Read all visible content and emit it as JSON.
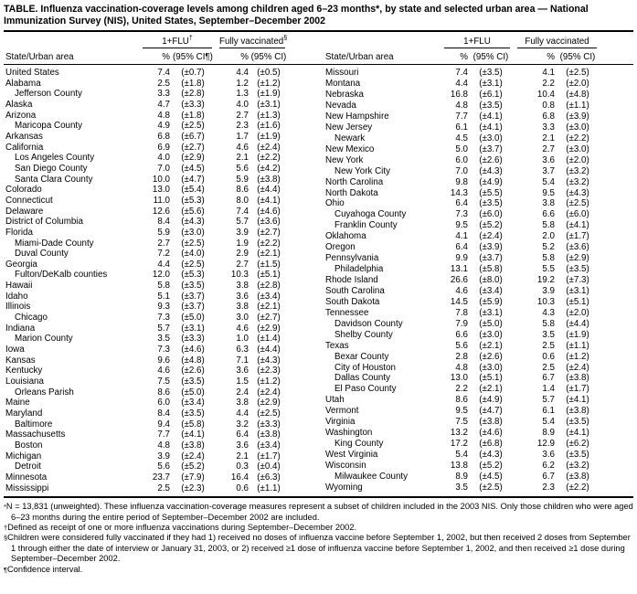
{
  "title": "TABLE. Influenza vaccination-coverage levels among children aged 6–23 months*, by state and selected urban area — National Immunization Survey (NIS), United States, September–December 2002",
  "header": {
    "state_col": "State/Urban area",
    "pct_label": "%",
    "ci_label": "(95% CI)",
    "ci_label_with_note": "(95% CI¶)",
    "left_flu": "1+FLU",
    "left_flu_marker": "†",
    "left_fully": "Fully vaccinated",
    "left_fully_marker": "§",
    "right_flu": "1+FLU",
    "right_fully": "Fully vaccinated"
  },
  "table": {
    "left_rows": [
      {
        "area": "United States",
        "indent": false,
        "flu_pct": "7.4",
        "flu_ci": "(±0.7)",
        "fully_pct": "4.4",
        "fully_ci": "(±0.5)"
      },
      {
        "area": "Alabama",
        "indent": false,
        "flu_pct": "2.5",
        "flu_ci": "(±1.8)",
        "fully_pct": "1.2",
        "fully_ci": "(±1.2)"
      },
      {
        "area": "Jefferson County",
        "indent": true,
        "flu_pct": "3.3",
        "flu_ci": "(±2.8)",
        "fully_pct": "1.3",
        "fully_ci": "(±1.9)"
      },
      {
        "area": "Alaska",
        "indent": false,
        "flu_pct": "4.7",
        "flu_ci": "(±3.3)",
        "fully_pct": "4.0",
        "fully_ci": "(±3.1)"
      },
      {
        "area": "Arizona",
        "indent": false,
        "flu_pct": "4.8",
        "flu_ci": "(±1.8)",
        "fully_pct": "2.7",
        "fully_ci": "(±1.3)"
      },
      {
        "area": "Maricopa County",
        "indent": true,
        "flu_pct": "4.9",
        "flu_ci": "(±2.5)",
        "fully_pct": "2.3",
        "fully_ci": "(±1.6)"
      },
      {
        "area": "Arkansas",
        "indent": false,
        "flu_pct": "6.8",
        "flu_ci": "(±6.7)",
        "fully_pct": "1.7",
        "fully_ci": "(±1.9)"
      },
      {
        "area": "California",
        "indent": false,
        "flu_pct": "6.9",
        "flu_ci": "(±2.7)",
        "fully_pct": "4.6",
        "fully_ci": "(±2.4)"
      },
      {
        "area": "Los Angeles County",
        "indent": true,
        "flu_pct": "4.0",
        "flu_ci": "(±2.9)",
        "fully_pct": "2.1",
        "fully_ci": "(±2.2)"
      },
      {
        "area": "San Diego County",
        "indent": true,
        "flu_pct": "7.0",
        "flu_ci": "(±4.5)",
        "fully_pct": "5.6",
        "fully_ci": "(±4.2)"
      },
      {
        "area": "Santa Clara County",
        "indent": true,
        "flu_pct": "10.0",
        "flu_ci": "(±4.7)",
        "fully_pct": "5.9",
        "fully_ci": "(±3.8)"
      },
      {
        "area": "Colorado",
        "indent": false,
        "flu_pct": "13.0",
        "flu_ci": "(±5.4)",
        "fully_pct": "8.6",
        "fully_ci": "(±4.4)"
      },
      {
        "area": "Connecticut",
        "indent": false,
        "flu_pct": "11.0",
        "flu_ci": "(±5.3)",
        "fully_pct": "8.0",
        "fully_ci": "(±4.1)"
      },
      {
        "area": "Delaware",
        "indent": false,
        "flu_pct": "12.6",
        "flu_ci": "(±5.6)",
        "fully_pct": "7.4",
        "fully_ci": "(±4.6)"
      },
      {
        "area": "District of Columbia",
        "indent": false,
        "flu_pct": "8.4",
        "flu_ci": "(±4.3)",
        "fully_pct": "5.7",
        "fully_ci": "(±3.6)"
      },
      {
        "area": "Florida",
        "indent": false,
        "flu_pct": "5.9",
        "flu_ci": "(±3.0)",
        "fully_pct": "3.9",
        "fully_ci": "(±2.7)"
      },
      {
        "area": "Miami-Dade County",
        "indent": true,
        "flu_pct": "2.7",
        "flu_ci": "(±2.5)",
        "fully_pct": "1.9",
        "fully_ci": "(±2.2)"
      },
      {
        "area": "Duval County",
        "indent": true,
        "flu_pct": "7.2",
        "flu_ci": "(±4.0)",
        "fully_pct": "2.9",
        "fully_ci": "(±2.1)"
      },
      {
        "area": "Georgia",
        "indent": false,
        "flu_pct": "4.4",
        "flu_ci": "(±2.5)",
        "fully_pct": "2.7",
        "fully_ci": "(±1.5)"
      },
      {
        "area": "Fulton/DeKalb counties",
        "indent": true,
        "flu_pct": "12.0",
        "flu_ci": "(±5.3)",
        "fully_pct": "10.3",
        "fully_ci": "(±5.1)"
      },
      {
        "area": "Hawaii",
        "indent": false,
        "flu_pct": "5.8",
        "flu_ci": "(±3.5)",
        "fully_pct": "3.8",
        "fully_ci": "(±2.8)"
      },
      {
        "area": "Idaho",
        "indent": false,
        "flu_pct": "5.1",
        "flu_ci": "(±3.7)",
        "fully_pct": "3.6",
        "fully_ci": "(±3.4)"
      },
      {
        "area": "Illinois",
        "indent": false,
        "flu_pct": "9.3",
        "flu_ci": "(±3.7)",
        "fully_pct": "3.8",
        "fully_ci": "(±2.1)"
      },
      {
        "area": "Chicago",
        "indent": true,
        "flu_pct": "7.3",
        "flu_ci": "(±5.0)",
        "fully_pct": "3.0",
        "fully_ci": "(±2.7)"
      },
      {
        "area": "Indiana",
        "indent": false,
        "flu_pct": "5.7",
        "flu_ci": "(±3.1)",
        "fully_pct": "4.6",
        "fully_ci": "(±2.9)"
      },
      {
        "area": "Marion County",
        "indent": true,
        "flu_pct": "3.5",
        "flu_ci": "(±3.3)",
        "fully_pct": "1.0",
        "fully_ci": "(±1.4)"
      },
      {
        "area": "Iowa",
        "indent": false,
        "flu_pct": "7.3",
        "flu_ci": "(±4.6)",
        "fully_pct": "6.3",
        "fully_ci": "(±4.4)"
      },
      {
        "area": "Kansas",
        "indent": false,
        "flu_pct": "9.6",
        "flu_ci": "(±4.8)",
        "fully_pct": "7.1",
        "fully_ci": "(±4.3)"
      },
      {
        "area": "Kentucky",
        "indent": false,
        "flu_pct": "4.6",
        "flu_ci": "(±2.6)",
        "fully_pct": "3.6",
        "fully_ci": "(±2.3)"
      },
      {
        "area": "Louisiana",
        "indent": false,
        "flu_pct": "7.5",
        "flu_ci": "(±3.5)",
        "fully_pct": "1.5",
        "fully_ci": "(±1.2)"
      },
      {
        "area": "Orleans Parish",
        "indent": true,
        "flu_pct": "8.6",
        "flu_ci": "(±5.0)",
        "fully_pct": "2.4",
        "fully_ci": "(±2.4)"
      },
      {
        "area": "Maine",
        "indent": false,
        "flu_pct": "6.0",
        "flu_ci": "(±3.4)",
        "fully_pct": "3.8",
        "fully_ci": "(±2.9)"
      },
      {
        "area": "Maryland",
        "indent": false,
        "flu_pct": "8.4",
        "flu_ci": "(±3.5)",
        "fully_pct": "4.4",
        "fully_ci": "(±2.5)"
      },
      {
        "area": "Baltimore",
        "indent": true,
        "flu_pct": "9.4",
        "flu_ci": "(±5.8)",
        "fully_pct": "3.2",
        "fully_ci": "(±3.3)"
      },
      {
        "area": "Massachusetts",
        "indent": false,
        "flu_pct": "7.7",
        "flu_ci": "(±4.1)",
        "fully_pct": "6.4",
        "fully_ci": "(±3.8)"
      },
      {
        "area": "Boston",
        "indent": true,
        "flu_pct": "4.8",
        "flu_ci": "(±3.8)",
        "fully_pct": "3.6",
        "fully_ci": "(±3.4)"
      },
      {
        "area": "Michigan",
        "indent": false,
        "flu_pct": "3.9",
        "flu_ci": "(±2.4)",
        "fully_pct": "2.1",
        "fully_ci": "(±1.7)"
      },
      {
        "area": "Detroit",
        "indent": true,
        "flu_pct": "5.6",
        "flu_ci": "(±5.2)",
        "fully_pct": "0.3",
        "fully_ci": "(±0.4)"
      },
      {
        "area": "Minnesota",
        "indent": false,
        "flu_pct": "23.7",
        "flu_ci": "(±7.9)",
        "fully_pct": "16.4",
        "fully_ci": "(±6.3)"
      },
      {
        "area": "Mississippi",
        "indent": false,
        "flu_pct": "2.5",
        "flu_ci": "(±2.3)",
        "fully_pct": "0.6",
        "fully_ci": "(±1.1)"
      }
    ],
    "right_rows": [
      {
        "area": "Missouri",
        "indent": false,
        "flu_pct": "7.4",
        "flu_ci": "(±3.5)",
        "fully_pct": "4.1",
        "fully_ci": "(±2.5)"
      },
      {
        "area": "Montana",
        "indent": false,
        "flu_pct": "4.4",
        "flu_ci": "(±3.1)",
        "fully_pct": "2.2",
        "fully_ci": "(±2.0)"
      },
      {
        "area": "Nebraska",
        "indent": false,
        "flu_pct": "16.8",
        "flu_ci": "(±6.1)",
        "fully_pct": "10.4",
        "fully_ci": "(±4.8)"
      },
      {
        "area": "Nevada",
        "indent": false,
        "flu_pct": "4.8",
        "flu_ci": "(±3.5)",
        "fully_pct": "0.8",
        "fully_ci": "(±1.1)"
      },
      {
        "area": "New Hampshire",
        "indent": false,
        "flu_pct": "7.7",
        "flu_ci": "(±4.1)",
        "fully_pct": "6.8",
        "fully_ci": "(±3.9)"
      },
      {
        "area": "New Jersey",
        "indent": false,
        "flu_pct": "6.1",
        "flu_ci": "(±4.1)",
        "fully_pct": "3.3",
        "fully_ci": "(±3.0)"
      },
      {
        "area": "Newark",
        "indent": true,
        "flu_pct": "4.5",
        "flu_ci": "(±3.0)",
        "fully_pct": "2.1",
        "fully_ci": "(±2.2)"
      },
      {
        "area": "New Mexico",
        "indent": false,
        "flu_pct": "5.0",
        "flu_ci": "(±3.7)",
        "fully_pct": "2.7",
        "fully_ci": "(±3.0)"
      },
      {
        "area": "New York",
        "indent": false,
        "flu_pct": "6.0",
        "flu_ci": "(±2.6)",
        "fully_pct": "3.6",
        "fully_ci": "(±2.0)"
      },
      {
        "area": "New York City",
        "indent": true,
        "flu_pct": "7.0",
        "flu_ci": "(±4.3)",
        "fully_pct": "3.7",
        "fully_ci": "(±3.2)"
      },
      {
        "area": "North Carolina",
        "indent": false,
        "flu_pct": "9.8",
        "flu_ci": "(±4.9)",
        "fully_pct": "5.4",
        "fully_ci": "(±3.2)"
      },
      {
        "area": "North Dakota",
        "indent": false,
        "flu_pct": "14.3",
        "flu_ci": "(±5.5)",
        "fully_pct": "9.5",
        "fully_ci": "(±4.3)"
      },
      {
        "area": "Ohio",
        "indent": false,
        "flu_pct": "6.4",
        "flu_ci": "(±3.5)",
        "fully_pct": "3.8",
        "fully_ci": "(±2.5)"
      },
      {
        "area": "Cuyahoga County",
        "indent": true,
        "flu_pct": "7.3",
        "flu_ci": "(±6.0)",
        "fully_pct": "6.6",
        "fully_ci": "(±6.0)"
      },
      {
        "area": "Franklin County",
        "indent": true,
        "flu_pct": "9.5",
        "flu_ci": "(±5.2)",
        "fully_pct": "5.8",
        "fully_ci": "(±4.1)"
      },
      {
        "area": "Oklahoma",
        "indent": false,
        "flu_pct": "4.1",
        "flu_ci": "(±2.4)",
        "fully_pct": "2.0",
        "fully_ci": "(±1.7)"
      },
      {
        "area": "Oregon",
        "indent": false,
        "flu_pct": "6.4",
        "flu_ci": "(±3.9)",
        "fully_pct": "5.2",
        "fully_ci": "(±3.6)"
      },
      {
        "area": "Pennsylvania",
        "indent": false,
        "flu_pct": "9.9",
        "flu_ci": "(±3.7)",
        "fully_pct": "5.8",
        "fully_ci": "(±2.9)"
      },
      {
        "area": "Philadelphia",
        "indent": true,
        "flu_pct": "13.1",
        "flu_ci": "(±5.8)",
        "fully_pct": "5.5",
        "fully_ci": "(±3.5)"
      },
      {
        "area": "Rhode Island",
        "indent": false,
        "flu_pct": "26.6",
        "flu_ci": "(±8.0)",
        "fully_pct": "19.2",
        "fully_ci": "(±7.3)"
      },
      {
        "area": "South Carolina",
        "indent": false,
        "flu_pct": "4.6",
        "flu_ci": "(±3.4)",
        "fully_pct": "3.9",
        "fully_ci": "(±3.1)"
      },
      {
        "area": "South Dakota",
        "indent": false,
        "flu_pct": "14.5",
        "flu_ci": "(±5.9)",
        "fully_pct": "10.3",
        "fully_ci": "(±5.1)"
      },
      {
        "area": "Tennessee",
        "indent": false,
        "flu_pct": "7.8",
        "flu_ci": "(±3.1)",
        "fully_pct": "4.3",
        "fully_ci": "(±2.0)"
      },
      {
        "area": "Davidson County",
        "indent": true,
        "flu_pct": "7.9",
        "flu_ci": "(±5.0)",
        "fully_pct": "5.8",
        "fully_ci": "(±4.4)"
      },
      {
        "area": "Shelby County",
        "indent": true,
        "flu_pct": "6.6",
        "flu_ci": "(±3.0)",
        "fully_pct": "3.5",
        "fully_ci": "(±1.9)"
      },
      {
        "area": "Texas",
        "indent": false,
        "flu_pct": "5.6",
        "flu_ci": "(±2.1)",
        "fully_pct": "2.5",
        "fully_ci": "(±1.1)"
      },
      {
        "area": "Bexar County",
        "indent": true,
        "flu_pct": "2.8",
        "flu_ci": "(±2.6)",
        "fully_pct": "0.6",
        "fully_ci": "(±1.2)"
      },
      {
        "area": "City of Houston",
        "indent": true,
        "flu_pct": "4.8",
        "flu_ci": "(±3.0)",
        "fully_pct": "2.5",
        "fully_ci": "(±2.4)"
      },
      {
        "area": "Dallas County",
        "indent": true,
        "flu_pct": "13.0",
        "flu_ci": "(±5.1)",
        "fully_pct": "6.7",
        "fully_ci": "(±3.8)"
      },
      {
        "area": "El Paso County",
        "indent": true,
        "flu_pct": "2.2",
        "flu_ci": "(±2.1)",
        "fully_pct": "1.4",
        "fully_ci": "(±1.7)"
      },
      {
        "area": "Utah",
        "indent": false,
        "flu_pct": "8.6",
        "flu_ci": "(±4.9)",
        "fully_pct": "5.7",
        "fully_ci": "(±4.1)"
      },
      {
        "area": "Vermont",
        "indent": false,
        "flu_pct": "9.5",
        "flu_ci": "(±4.7)",
        "fully_pct": "6.1",
        "fully_ci": "(±3.8)"
      },
      {
        "area": "Virginia",
        "indent": false,
        "flu_pct": "7.5",
        "flu_ci": "(±3.8)",
        "fully_pct": "5.4",
        "fully_ci": "(±3.5)"
      },
      {
        "area": "Washington",
        "indent": false,
        "flu_pct": "13.2",
        "flu_ci": "(±4.6)",
        "fully_pct": "8.9",
        "fully_ci": "(±4.1)"
      },
      {
        "area": "King County",
        "indent": true,
        "flu_pct": "17.2",
        "flu_ci": "(±6.8)",
        "fully_pct": "12.9",
        "fully_ci": "(±6.2)"
      },
      {
        "area": "West Virginia",
        "indent": false,
        "flu_pct": "5.4",
        "flu_ci": "(±4.3)",
        "fully_pct": "3.6",
        "fully_ci": "(±3.5)"
      },
      {
        "area": "Wisconsin",
        "indent": false,
        "flu_pct": "13.8",
        "flu_ci": "(±5.2)",
        "fully_pct": "6.2",
        "fully_ci": "(±3.2)"
      },
      {
        "area": "Milwaukee County",
        "indent": true,
        "flu_pct": "8.9",
        "flu_ci": "(±4.5)",
        "fully_pct": "6.7",
        "fully_ci": "(±3.8)"
      },
      {
        "area": "Wyoming",
        "indent": false,
        "flu_pct": "3.5",
        "flu_ci": "(±2.5)",
        "fully_pct": "2.3",
        "fully_ci": "(±2.2)"
      }
    ]
  },
  "footnotes": [
    {
      "marker": "*",
      "text": "N = 13,831 (unweighted). These influenza vaccination-coverage measures represent a subset of children included in the 2003 NIS. Only those children who were aged 6–23 months during the entire period of September–December 2002 are included."
    },
    {
      "marker": "†",
      "text": "Defined as receipt of one or more influenza vaccinations during September–December 2002."
    },
    {
      "marker": "§",
      "text": "Children were considered fully vaccinated if they had 1) received no doses of influenza vaccine before September 1, 2002, but then received 2 doses from September 1 through either the date of interview or January 31, 2003, or 2) received ≥1 dose of influenza vaccine before September 1, 2002, and then received ≥1 dose during September–December 2002."
    },
    {
      "marker": "¶",
      "text": "Confidence interval."
    }
  ]
}
